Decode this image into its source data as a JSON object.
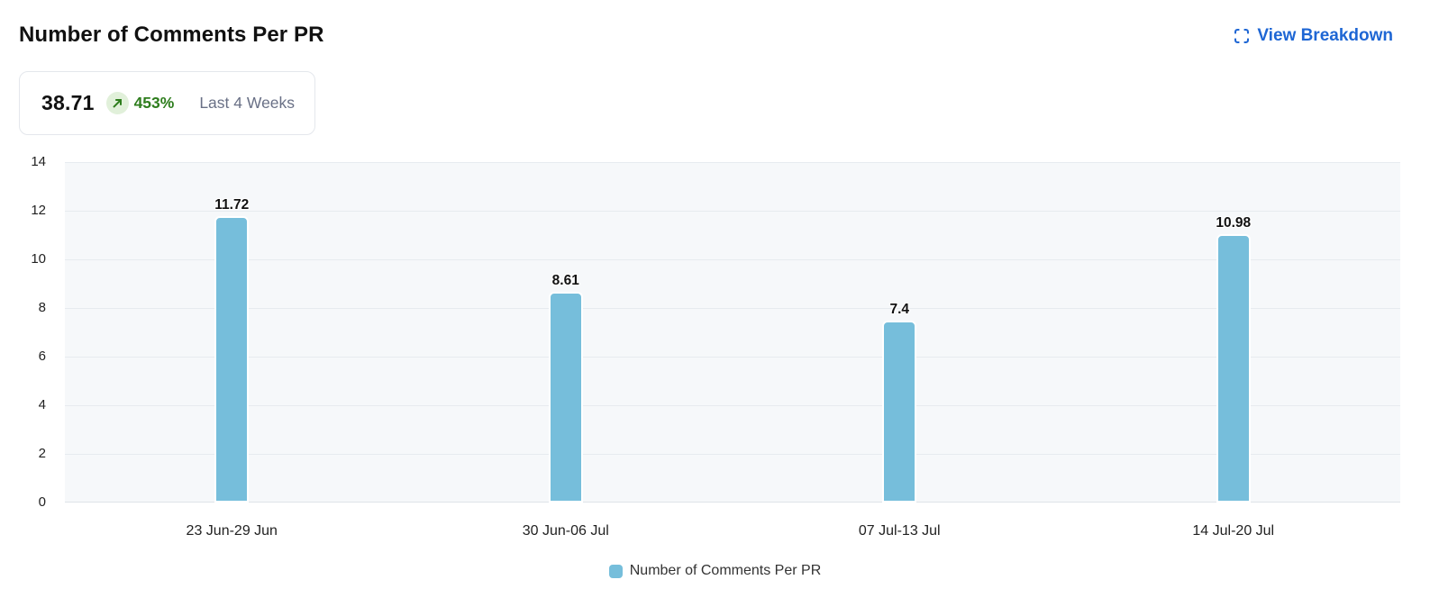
{
  "header": {
    "title": "Number of Comments Per PR",
    "view_breakdown_label": "View Breakdown"
  },
  "stat_card": {
    "value": "38.71",
    "trend_direction": "up",
    "trend_percent": "453%",
    "period_label": "Last 4 Weeks"
  },
  "colors": {
    "bar": "#76bedb",
    "link_blue": "#1e66d4",
    "trend_green": "#2e7d1d",
    "trend_badge_bg": "#e1f0da",
    "plot_bg": "#f6f8fa",
    "grid_line": "#e7ebef",
    "zero_line": "#dee3e8",
    "period_gray": "#697086",
    "card_border": "#e4e7ec",
    "axis_label": "#222222",
    "value_label": "#111111",
    "legend_text": "#333333",
    "title_color": "#111111"
  },
  "chart_data": {
    "type": "bar",
    "title": "Number of Comments Per PR",
    "categories": [
      "23 Jun-29 Jun",
      "30 Jun-06 Jul",
      "07 Jul-13 Jul",
      "14 Jul-20 Jul"
    ],
    "values": [
      11.72,
      8.61,
      7.4,
      10.98
    ],
    "value_labels": [
      "11.72",
      "8.61",
      "7.4",
      "10.98"
    ],
    "xlabel": "",
    "ylabel": "",
    "ylim": [
      0,
      14
    ],
    "y_ticks": [
      0,
      2,
      4,
      6,
      8,
      10,
      12,
      14
    ],
    "grid": true,
    "legend": {
      "position": "bottom",
      "entries": [
        "Number of Comments Per PR"
      ]
    }
  }
}
